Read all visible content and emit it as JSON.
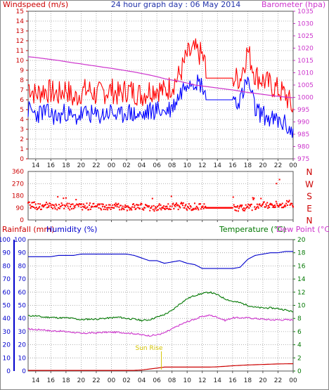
{
  "header": {
    "left_label": "Windspeed (m/s)",
    "title": "24 hour graph day : 06 May 2014",
    "right_label": "Barometer (hpa)"
  },
  "colors": {
    "wind_gust": "#ff0000",
    "wind_avg": "#0000ff",
    "barometer": "#cc33cc",
    "direction": "#ff0000",
    "rain": "#cc0000",
    "humidity": "#0000cc",
    "temperature": "#007700",
    "dewpoint": "#cc33cc",
    "sunrise": "#d4c400",
    "axis_left": "#cc0000",
    "axis_blue": "#0000cc",
    "axis_green": "#007700",
    "grid": "#9a9a9a",
    "text": "#222222"
  },
  "panel2": {
    "compass": [
      "N",
      "W",
      "S",
      "E",
      "N"
    ]
  },
  "panel3": {
    "rain_label": "Rainfall (mm)",
    "humidity_label": "Humidity (%)",
    "temp_label": "Temperature (°C)",
    "dew_label": "Dew Point (°C)",
    "sunrise_label": "Sun Rise"
  },
  "x_ticks": [
    "14",
    "16",
    "18",
    "20",
    "22",
    "00",
    "02",
    "04",
    "06",
    "08",
    "10",
    "12",
    "14",
    "16",
    "18",
    "20",
    "22",
    "00"
  ],
  "chart_data": [
    {
      "type": "line",
      "title": "24 hour graph day : 06 May 2014",
      "ylabel": "Windspeed (m/s)",
      "ylim": [
        0,
        15
      ],
      "y_ticks": [
        0,
        1,
        2,
        3,
        4,
        5,
        6,
        7,
        8,
        9,
        10,
        11,
        12,
        13,
        14,
        15
      ],
      "y2label": "Barometer (hpa)",
      "y2lim": [
        975,
        1035
      ],
      "y2_ticks": [
        975,
        980,
        985,
        990,
        995,
        1000,
        1005,
        1010,
        1015,
        1020,
        1025,
        1030,
        1035
      ],
      "x_hours": [
        13,
        14,
        15,
        16,
        17,
        18,
        19,
        20,
        21,
        22,
        23,
        24,
        25,
        26,
        27,
        28,
        29,
        30,
        31,
        32,
        33,
        34,
        35,
        36,
        37,
        38,
        39,
        40,
        41,
        42,
        43,
        44,
        45,
        46,
        47,
        48
      ],
      "series": [
        {
          "name": "Windspeed (m/s)",
          "axis": "left",
          "values": [
            7.5,
            6.5,
            7.0,
            6.8,
            6.5,
            7.2,
            6.0,
            6.8,
            7.0,
            6.5,
            6.8,
            7.0,
            6.5,
            7.0,
            6.8,
            6.5,
            7.0,
            7.2,
            6.8,
            7.5,
            8.5,
            10.5,
            11.0,
            10.5,
            8.2,
            8.2,
            8.2,
            8.2,
            8.2,
            11.0,
            8.5,
            8.0,
            7.5,
            7.0,
            6.5,
            5.0
          ]
        },
        {
          "name": "Windspeed (m/s) average",
          "axis": "left",
          "values": [
            5.0,
            4.5,
            4.8,
            4.5,
            4.2,
            4.8,
            4.0,
            4.5,
            4.6,
            4.3,
            4.5,
            4.8,
            4.2,
            4.8,
            4.5,
            4.3,
            4.8,
            5.0,
            4.8,
            5.2,
            6.5,
            8.0,
            8.0,
            7.5,
            6.0,
            6.0,
            6.0,
            6.0,
            6.0,
            8.0,
            5.0,
            4.5,
            4.0,
            3.8,
            3.5,
            2.5
          ]
        },
        {
          "name": "Barometer (hpa)",
          "axis": "right",
          "values": [
            1016.5,
            1016.2,
            1015.8,
            1015.4,
            1015.0,
            1014.5,
            1014.0,
            1013.6,
            1013.1,
            1012.7,
            1012.2,
            1011.8,
            1011.3,
            1010.8,
            1010.3,
            1009.7,
            1009.1,
            1008.4,
            1007.6,
            1007.0,
            1006.5,
            1005.8,
            1005.0,
            1004.6,
            1004.2,
            1003.8,
            1003.4,
            1003.0,
            1002.5,
            1002.0,
            1001.6,
            1001.2,
            1000.8,
            1000.4,
            1000.1,
            999.8
          ]
        }
      ]
    },
    {
      "type": "scatter",
      "ylabel": "Wind direction",
      "ylim": [
        0,
        360
      ],
      "y_ticks": [
        0,
        90,
        180,
        270,
        360
      ],
      "x_hours": [
        13,
        14,
        15,
        16,
        17,
        18,
        19,
        20,
        21,
        22,
        23,
        24,
        25,
        26,
        27,
        28,
        29,
        30,
        31,
        32,
        33,
        34,
        35,
        36,
        37,
        38,
        39,
        40,
        41,
        42,
        43,
        44,
        45,
        46,
        47,
        48
      ],
      "series": [
        {
          "name": "Direction",
          "values": [
            110,
            100,
            105,
            95,
            100,
            100,
            95,
            100,
            100,
            100,
            95,
            100,
            100,
            95,
            100,
            95,
            90,
            95,
            100,
            100,
            105,
            95,
            100,
            100,
            90,
            90,
            90,
            90,
            90,
            95,
            100,
            110,
            115,
            110,
            120,
            105
          ]
        }
      ]
    },
    {
      "type": "line",
      "y_left": {
        "label": "Rainfall (mm)",
        "lim": [
          0,
          100
        ],
        "ticks": [
          0,
          10,
          20,
          30,
          40,
          50,
          60,
          70,
          80,
          90,
          100
        ]
      },
      "y_humidity": {
        "label": "Humidity (%)",
        "lim": [
          0,
          100
        ],
        "ticks": [
          0,
          10,
          20,
          30,
          40,
          50,
          60,
          70,
          80,
          90,
          100
        ]
      },
      "y_right": {
        "label": "Temperature (°C)",
        "lim": [
          0,
          20
        ],
        "ticks": [
          0,
          2,
          4,
          6,
          8,
          10,
          12,
          14,
          16,
          18,
          20
        ]
      },
      "x_hours": [
        13,
        14,
        15,
        16,
        17,
        18,
        19,
        20,
        21,
        22,
        23,
        24,
        25,
        26,
        27,
        28,
        29,
        30,
        31,
        32,
        33,
        34,
        35,
        36,
        37,
        38,
        39,
        40,
        41,
        42,
        43,
        44,
        45,
        46,
        47,
        48
      ],
      "series": [
        {
          "name": "Humidity (%)",
          "axis": "humidity",
          "values": [
            87,
            87,
            87,
            87,
            88,
            88,
            88,
            89,
            89,
            89,
            89,
            89,
            89,
            89,
            88,
            86,
            84,
            84,
            82,
            83,
            84,
            82,
            81,
            78,
            78,
            78,
            78,
            78,
            79,
            85,
            88,
            89,
            90,
            90,
            91,
            91
          ]
        },
        {
          "name": "Temperature (°C)",
          "axis": "right",
          "values": [
            8.4,
            8.4,
            8.2,
            8.2,
            8.1,
            8.1,
            8.0,
            7.8,
            7.9,
            7.9,
            8.0,
            8.1,
            8.2,
            8.0,
            7.9,
            7.7,
            7.8,
            8.2,
            8.6,
            9.2,
            10.2,
            11.0,
            11.5,
            11.8,
            12.0,
            11.6,
            11.0,
            10.6,
            10.4,
            10.0,
            9.7,
            9.6,
            9.6,
            9.5,
            9.3,
            9.0
          ]
        },
        {
          "name": "Dew Point (°C)",
          "axis": "right",
          "values": [
            6.4,
            6.3,
            6.3,
            6.1,
            6.1,
            6.0,
            5.9,
            5.7,
            5.8,
            5.8,
            5.9,
            5.9,
            5.9,
            5.8,
            5.7,
            5.5,
            5.4,
            5.5,
            5.8,
            6.4,
            7.0,
            7.5,
            7.9,
            8.3,
            8.5,
            8.2,
            7.7,
            8.1,
            8.1,
            8.1,
            8.0,
            7.9,
            7.8,
            7.8,
            7.8,
            7.8
          ]
        },
        {
          "name": "Rainfall (mm)",
          "axis": "left",
          "values": [
            0.5,
            0.5,
            0.5,
            0.5,
            0.5,
            0.5,
            0.5,
            0.5,
            0.5,
            0.5,
            0.5,
            0.5,
            0.5,
            0.5,
            0.5,
            0.8,
            1.5,
            2.2,
            3.0,
            3.0,
            3.0,
            3.0,
            3.0,
            3.0,
            3.0,
            3.2,
            3.6,
            4.0,
            4.3,
            4.6,
            4.8,
            5.0,
            5.2,
            5.4,
            5.5,
            5.6
          ]
        }
      ]
    }
  ]
}
